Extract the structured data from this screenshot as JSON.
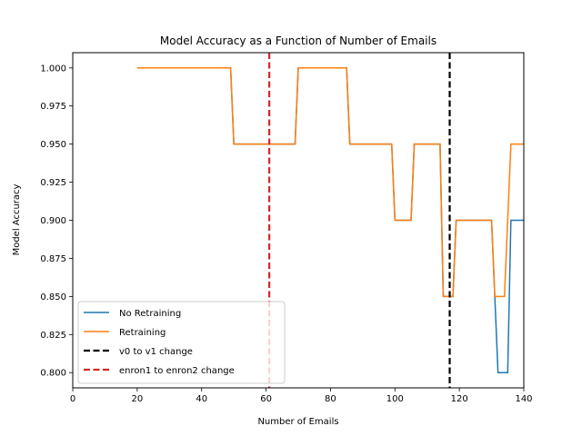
{
  "chart_data": {
    "type": "line",
    "title": "Model Accuracy as a Function of Number of Emails",
    "xlabel": "Number of Emails",
    "ylabel": "Model Accuracy",
    "xlim": [
      0,
      140
    ],
    "ylim": [
      0.79,
      1.01
    ],
    "xticks": [
      0,
      20,
      40,
      60,
      80,
      100,
      120,
      140
    ],
    "yticks": [
      0.8,
      0.825,
      0.85,
      0.875,
      0.9,
      0.925,
      0.95,
      0.975,
      1.0
    ],
    "ytick_labels": [
      "0.800",
      "0.825",
      "0.850",
      "0.875",
      "0.900",
      "0.925",
      "0.950",
      "0.975",
      "1.000"
    ],
    "grid": false,
    "legend_position": "bottom-left",
    "series": [
      {
        "name": "No Retraining",
        "color": "#1f77b4",
        "x": [
          20,
          49,
          50,
          69,
          70,
          85,
          86,
          99,
          100,
          105,
          106,
          114,
          115,
          118,
          119,
          130,
          131,
          132,
          133,
          135,
          136,
          140
        ],
        "y": [
          1.0,
          1.0,
          0.95,
          0.95,
          1.0,
          1.0,
          0.95,
          0.95,
          0.9,
          0.9,
          0.95,
          0.95,
          0.85,
          0.85,
          0.9,
          0.9,
          0.85,
          0.8,
          0.8,
          0.8,
          0.9,
          0.9
        ]
      },
      {
        "name": "Retraining",
        "color": "#ff7f0e",
        "x": [
          20,
          49,
          50,
          69,
          70,
          85,
          86,
          99,
          100,
          105,
          106,
          114,
          115,
          118,
          119,
          130,
          131,
          134,
          135,
          136,
          140
        ],
        "y": [
          1.0,
          1.0,
          0.95,
          0.95,
          1.0,
          1.0,
          0.95,
          0.95,
          0.9,
          0.9,
          0.95,
          0.95,
          0.85,
          0.85,
          0.9,
          0.9,
          0.85,
          0.85,
          0.9,
          0.95,
          0.95
        ]
      }
    ],
    "vlines": [
      {
        "name": "v0 to v1 change",
        "x": 117,
        "color": "#000000"
      },
      {
        "name": "enron1 to enron2 change",
        "x": 61,
        "color": "#d62728"
      }
    ],
    "legend_entries": [
      "No Retraining",
      "Retraining",
      "v0 to v1 change",
      "enron1 to enron2 change"
    ]
  }
}
